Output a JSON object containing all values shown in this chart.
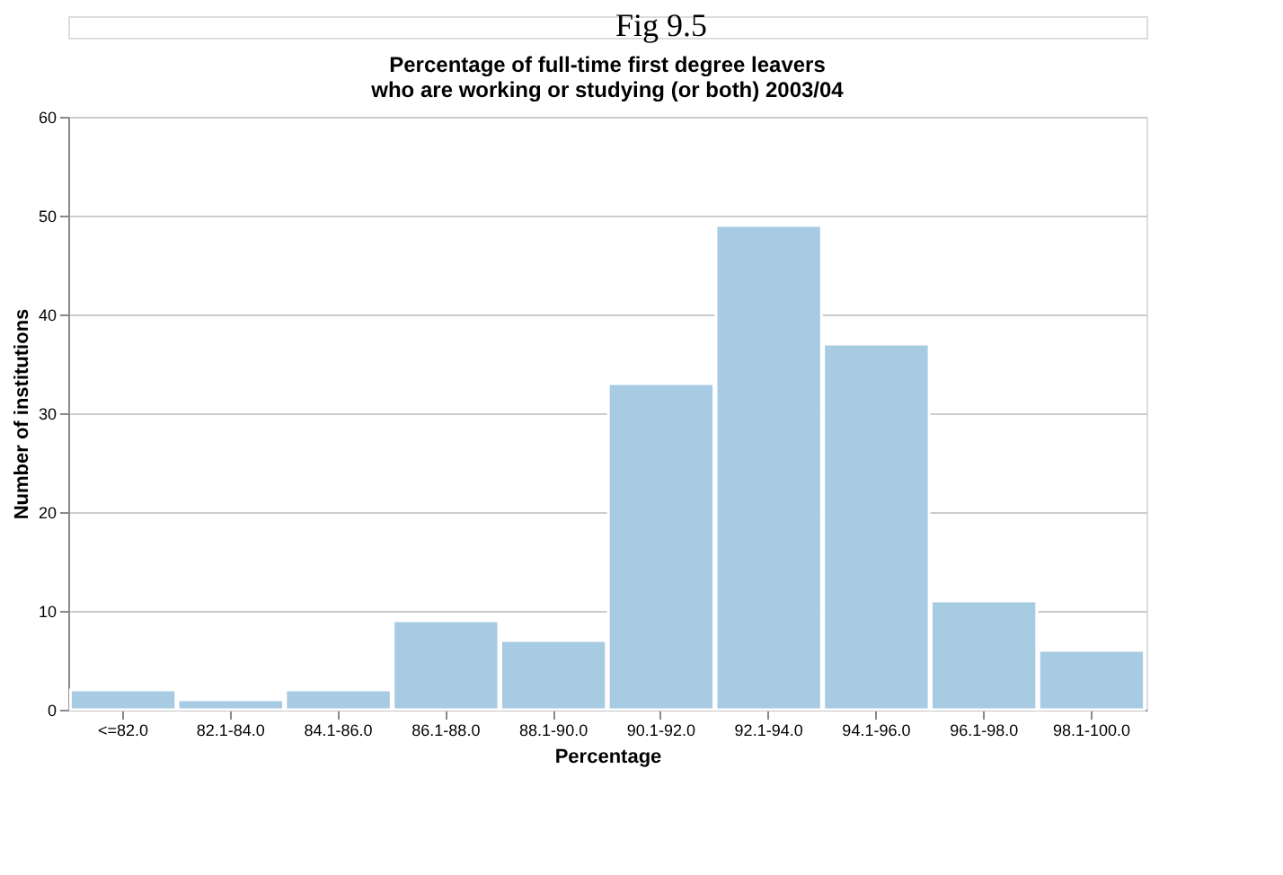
{
  "chart_data": {
    "type": "bar",
    "title": "Percentage of full-time first degree leavers\nwho are working or studying (or both) 2003/04",
    "annotations": [
      "Fig 9.5"
    ],
    "xlabel": "Percentage",
    "ylabel": "Number of institutions",
    "categories": [
      "<=82.0",
      "82.1-84.0",
      "84.1-86.0",
      "86.1-88.0",
      "88.1-90.0",
      "90.1-92.0",
      "92.1-94.0",
      "94.1-96.0",
      "96.1-98.0",
      "98.1-100.0"
    ],
    "values": [
      2,
      1,
      2,
      9,
      7,
      33,
      49,
      37,
      11,
      6
    ],
    "color": "#a6cbe3",
    "ylim": [
      0,
      60
    ],
    "yticks": [
      0,
      10,
      20,
      30,
      40,
      50,
      60
    ],
    "grid": "y"
  }
}
